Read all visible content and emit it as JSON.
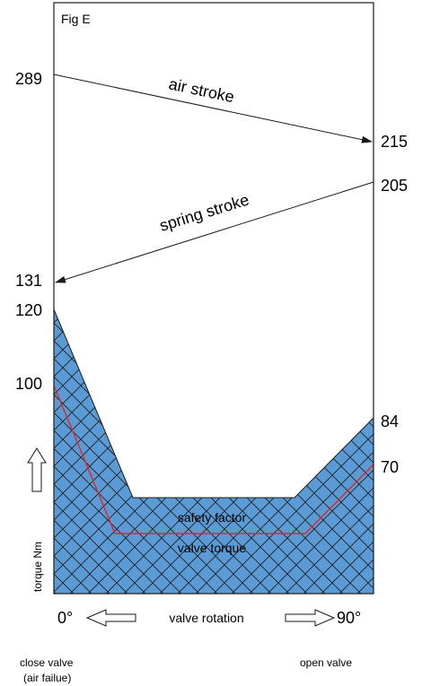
{
  "figure": {
    "title": "Fig E",
    "air_stroke": {
      "label": "air stroke",
      "start_value": "289",
      "end_value": "215"
    },
    "spring_stroke": {
      "label": "spring stroke",
      "start_value": "205",
      "end_value": "131"
    },
    "torque_values": {
      "left_top": "120",
      "left_valve": "100",
      "right_top": "84",
      "right_valve": "70"
    },
    "regions": {
      "safety_factor": "safety factor",
      "valve_torque": "valve torque"
    },
    "y_axis_label": "torque Nm",
    "x_axis": {
      "start": "0°",
      "end": "90°",
      "label": "valve rotation"
    },
    "footer": {
      "left_line1": "close valve",
      "left_line2": "(air failue)",
      "right": "open valve"
    },
    "colors": {
      "fill": "#5b9bd5",
      "hatch": "#1a1a1a",
      "valve_line": "#e0262b",
      "frame": "#1a1a1a"
    }
  }
}
